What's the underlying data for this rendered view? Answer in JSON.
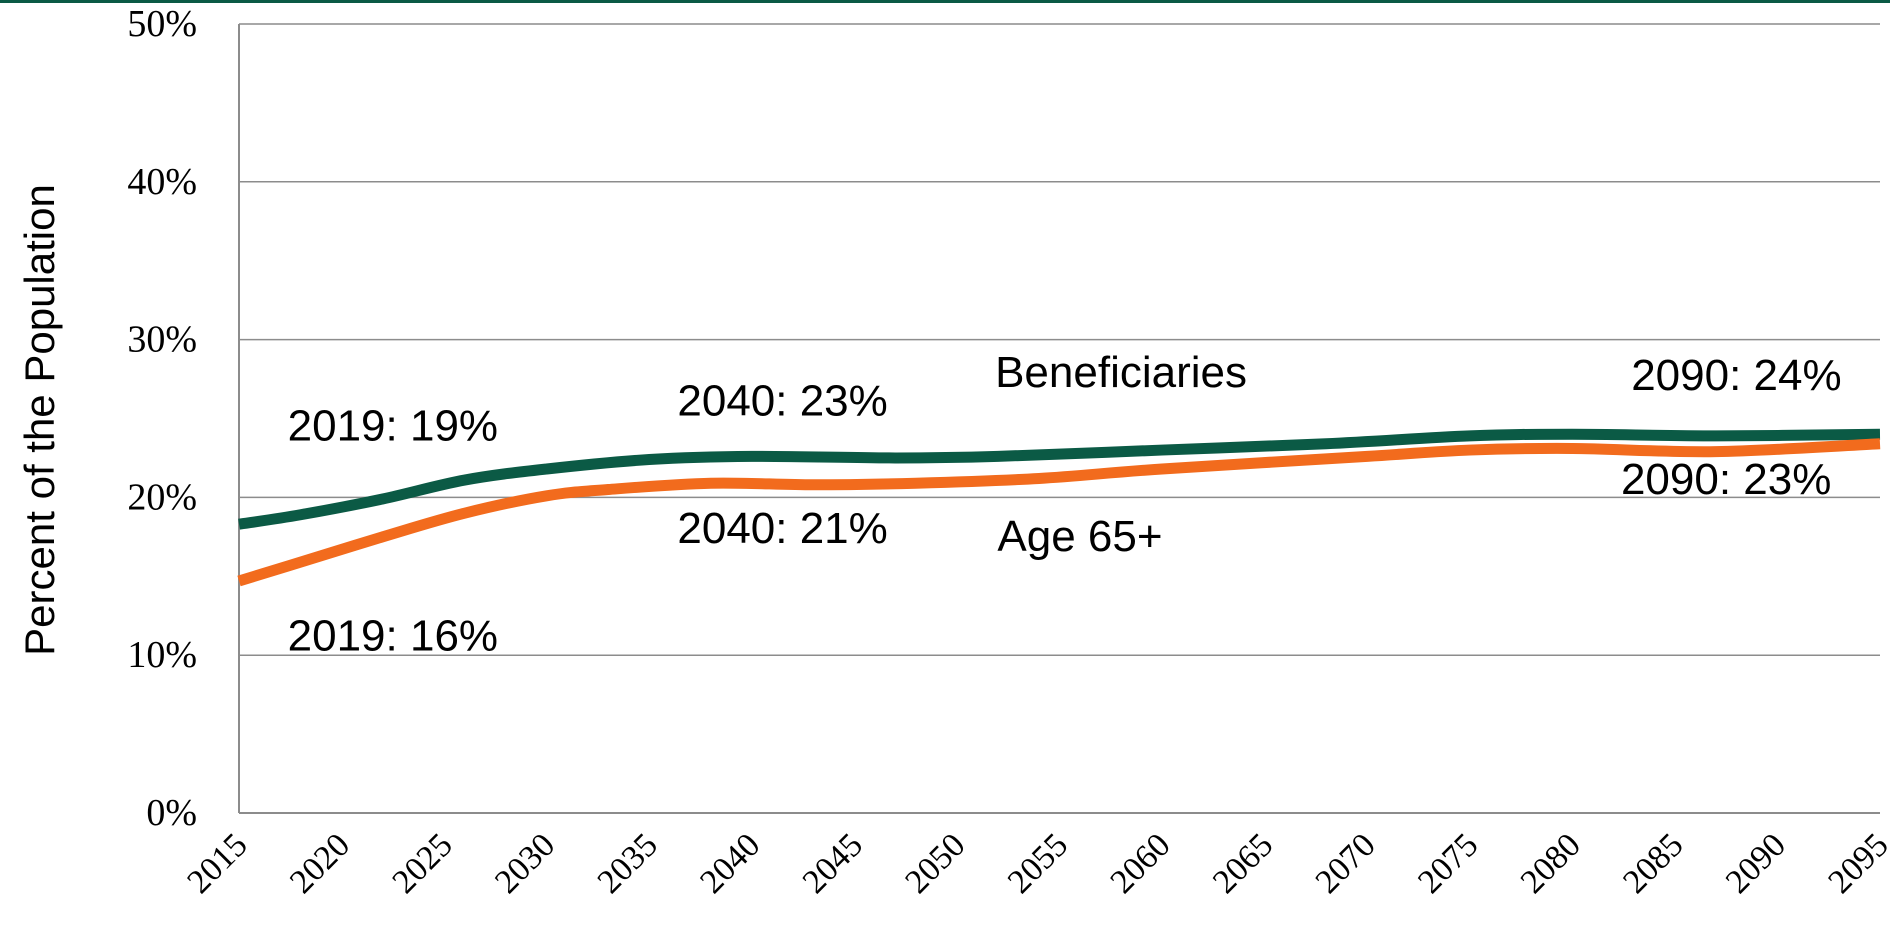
{
  "chart_data": {
    "type": "line",
    "title": "",
    "xlabel": "",
    "ylabel": "Percent of the Population",
    "xlim": [
      2015,
      2095
    ],
    "ylim": [
      0,
      50
    ],
    "x_ticks": [
      "2015",
      "2020",
      "2025",
      "2030",
      "2035",
      "2040",
      "2045",
      "2050",
      "2055",
      "2060",
      "2065",
      "2070",
      "2075",
      "2080",
      "2085",
      "2090",
      "2095"
    ],
    "y_ticks": [
      "0%",
      "10%",
      "20%",
      "30%",
      "40%",
      "50%"
    ],
    "y_tick_values": [
      0,
      10,
      20,
      30,
      40,
      50
    ],
    "grid": true,
    "series": [
      {
        "name": "Beneficiaries",
        "color": "#0b5a45",
        "x": [
          2015,
          2018,
          2022,
          2026,
          2030,
          2035,
          2040,
          2047,
          2052,
          2060,
          2068,
          2075,
          2080,
          2087,
          2095
        ],
        "y": [
          18.3,
          18.9,
          19.9,
          21.1,
          21.8,
          22.4,
          22.6,
          22.5,
          22.6,
          23.0,
          23.4,
          23.9,
          24.0,
          23.9,
          24.0
        ]
      },
      {
        "name": "Age 65+",
        "color": "#f26b1d",
        "x": [
          2015,
          2018,
          2022,
          2026,
          2030,
          2033,
          2038,
          2043,
          2048,
          2054,
          2060,
          2070,
          2075,
          2080,
          2087,
          2095
        ],
        "y": [
          14.7,
          15.9,
          17.5,
          19.0,
          20.1,
          20.5,
          20.9,
          20.8,
          20.9,
          21.2,
          21.8,
          22.6,
          23.0,
          23.1,
          22.9,
          23.4
        ]
      }
    ],
    "annotations": [
      {
        "text": "Beneficiaries",
        "x": 2058,
        "y": 27.0
      },
      {
        "text": "Age 65+",
        "x": 2056,
        "y": 16.6
      },
      {
        "text": "2019: 19%",
        "x": 2022.5,
        "y": 23.6
      },
      {
        "text": "2019: 16%",
        "x": 2022.5,
        "y": 10.3
      },
      {
        "text": "2040: 23%",
        "x": 2041.5,
        "y": 25.2
      },
      {
        "text": "2040: 21%",
        "x": 2041.5,
        "y": 17.1
      },
      {
        "text": "2090: 24%",
        "x": 2088,
        "y": 26.8
      },
      {
        "text": "2090: 23%",
        "x": 2087.5,
        "y": 20.2
      }
    ]
  }
}
